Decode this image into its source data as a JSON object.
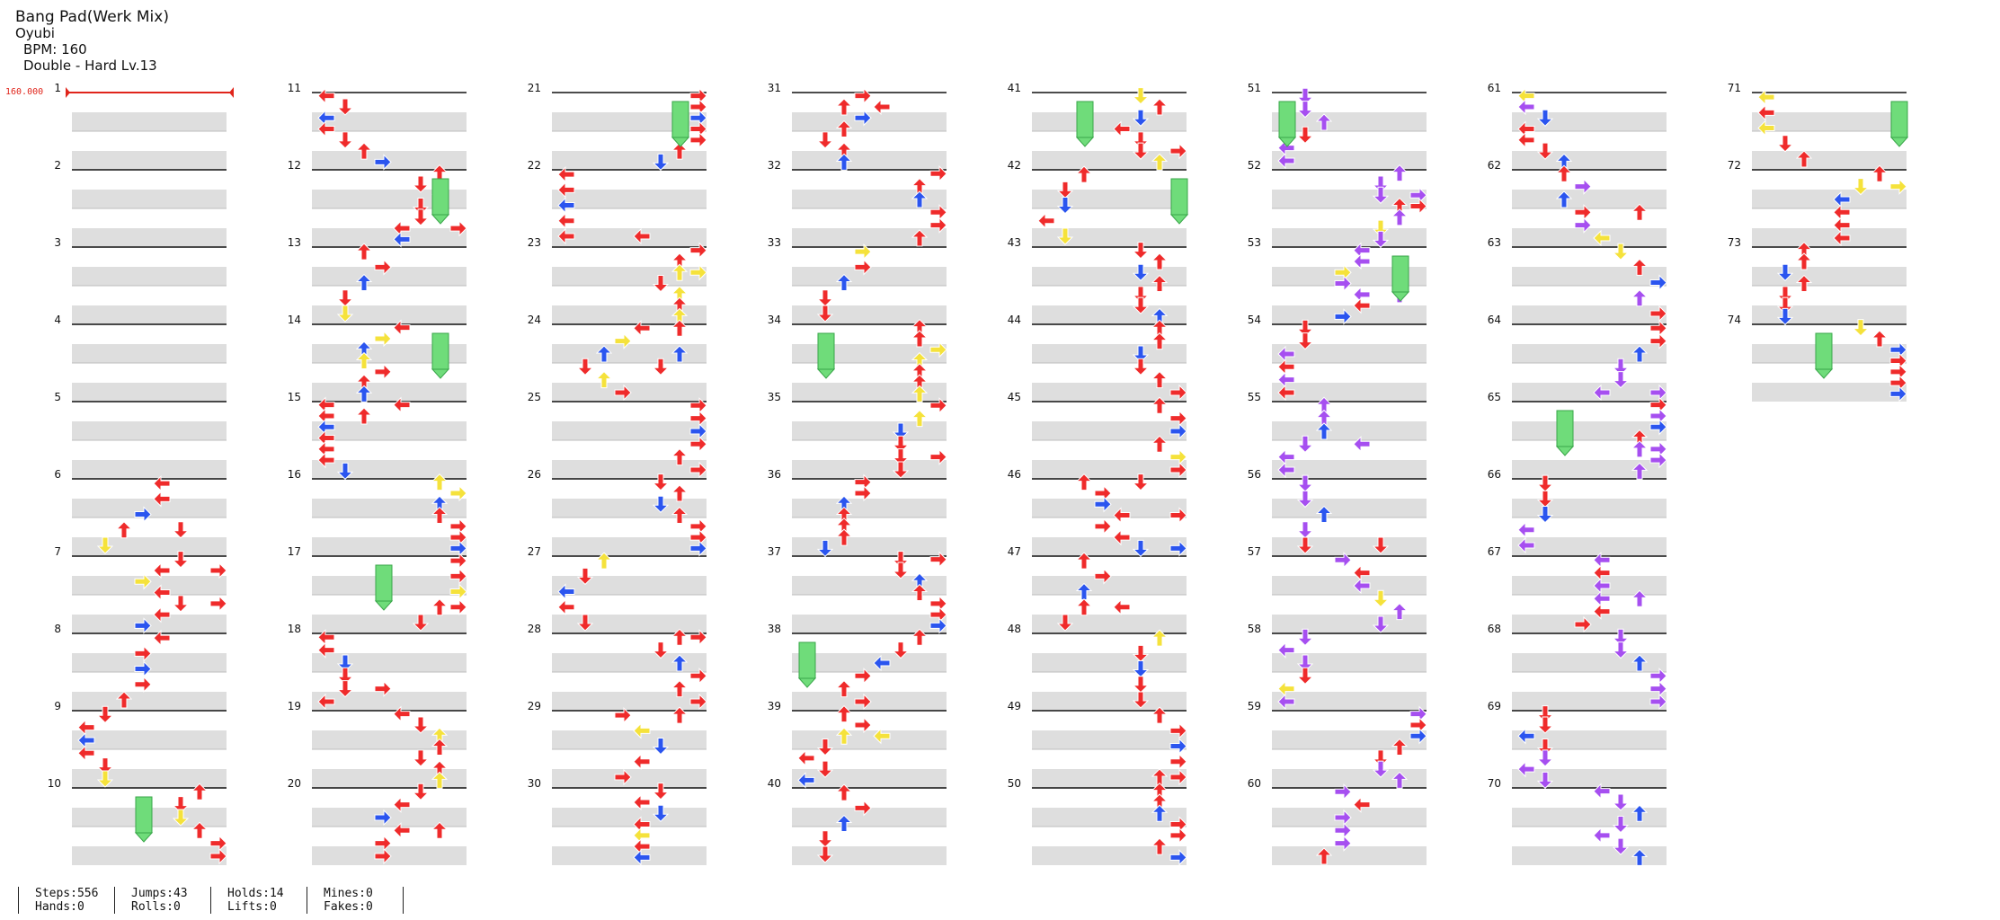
{
  "song": {
    "title": "Bang Pad(Werk Mix)",
    "artist": "Oyubi",
    "bpm_line": "BPM: 160",
    "difficulty_line": "Double - Hard Lv.13"
  },
  "bpm_marker": "160.000",
  "measures": {
    "total": 74,
    "columns": 8,
    "per_column": 10
  },
  "colors": {
    "red": "#ef2b2b",
    "blue": "#2b55ef",
    "yellow": "#f5e23b",
    "purple": "#a64ff0",
    "hold_green": "#6fdc7a",
    "lane_gray": "#dedede",
    "bpm_red": "#e0251b"
  },
  "stats": {
    "steps": "Steps:556",
    "hands": "Hands:0",
    "jumps": "Jumps:43",
    "rolls": "Rolls:0",
    "holds": "Holds:14",
    "lifts": "Lifts:0",
    "mines": "Mines:0",
    "fakes": "Fakes:0"
  }
}
